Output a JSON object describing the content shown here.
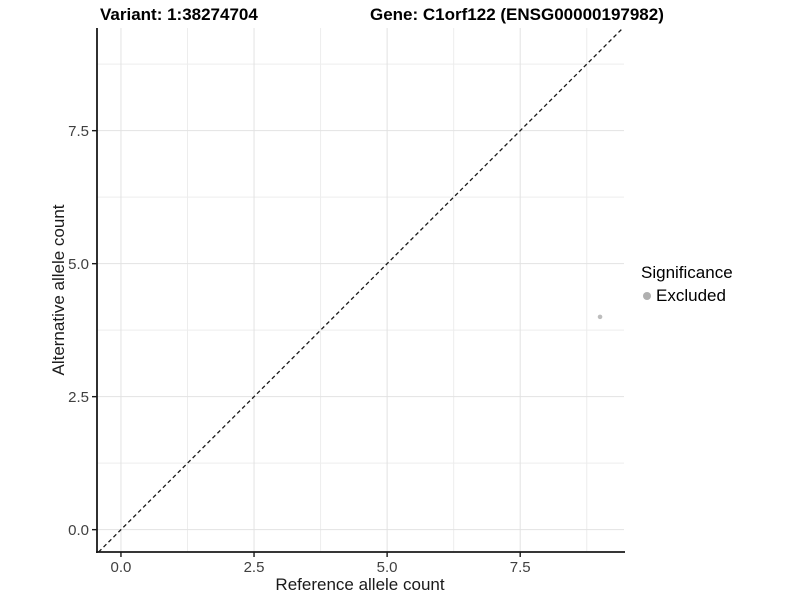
{
  "chart_data": {
    "type": "scatter",
    "title_left": "Variant: 1:38274704",
    "title_right": "Gene: C1orf122 (ENSG00000197982)",
    "xlabel": "Reference allele count",
    "ylabel": "Alternative allele count",
    "xlim": [
      -0.45,
      9.45
    ],
    "ylim": [
      -0.42,
      9.43
    ],
    "ticks": {
      "values": [
        0,
        2.5,
        5,
        7.5
      ],
      "labels": [
        "0.0",
        "2.5",
        "5.0",
        "7.5"
      ]
    },
    "minor_ticks": [
      1.25,
      3.75,
      6.25,
      8.75
    ],
    "grid": true,
    "identity_line": {
      "slope": 1,
      "intercept": 0,
      "style": "dashed",
      "color": "#1a1a1a"
    },
    "series": [
      {
        "name": "Excluded",
        "color": "#bdbdbd",
        "point_radius": 2.3,
        "points": [
          {
            "x": 9,
            "y": 4
          }
        ]
      }
    ],
    "legend": {
      "title": "Significance",
      "position": "right",
      "items": [
        {
          "label": "Excluded",
          "color": "#b0b0b0"
        }
      ]
    },
    "colors": {
      "background": "#ffffff",
      "grid_major": "#e2e2e2",
      "grid_minor": "#ededed",
      "axis_line": "#1a1a1a",
      "tick_text": "#404040"
    }
  }
}
